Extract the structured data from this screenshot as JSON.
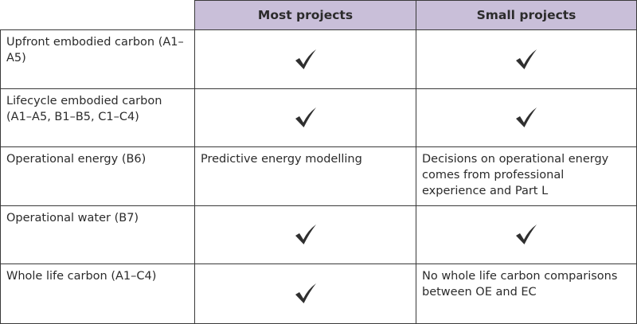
{
  "table": {
    "columns": [
      "",
      "Most projects",
      "Small projects"
    ],
    "rows": [
      {
        "label": "Upfront embodied carbon (A1–A5)",
        "most": "",
        "small": ""
      },
      {
        "label": "Lifecycle embodied carbon (A1–A5, B1–B5, C1–C4)",
        "most": "",
        "small": ""
      },
      {
        "label": "Operational energy (B6)",
        "most": "Predictive energy modelling",
        "small": "Decisions on operational energy comes from professional experience and Part L"
      },
      {
        "label": "Operational water (B7)",
        "most": "",
        "small": ""
      },
      {
        "label": "Whole life carbon (A1–C4)",
        "most": "",
        "small": "No whole life carbon comparisons between OE and EC"
      }
    ],
    "checks": [
      {
        "most": true,
        "small": true
      },
      {
        "most": true,
        "small": true
      },
      {
        "most": false,
        "small": false
      },
      {
        "most": true,
        "small": true
      },
      {
        "most": true,
        "small": false
      }
    ],
    "header_bg": "#c9bfd9",
    "icons": {
      "check": "checkmark-icon"
    }
  }
}
